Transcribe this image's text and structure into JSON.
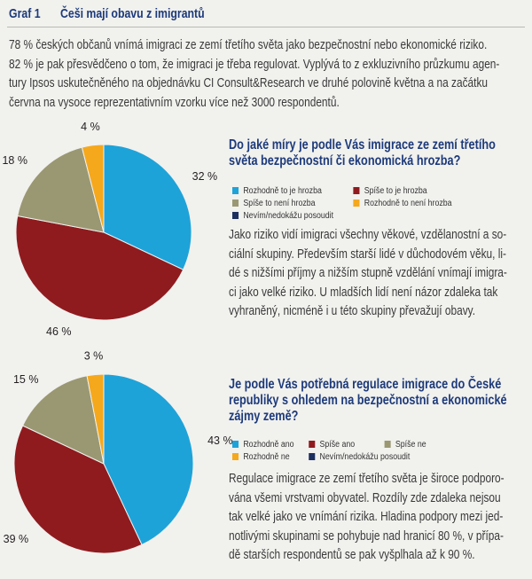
{
  "header": {
    "graf_label": "Graf 1",
    "title": "Češi mají obavu z imigrantů"
  },
  "intro": {
    "lines": [
      "78 % českých občanů vnímá imigraci ze zemí třetího světa jako bezpečnostní nebo ekonomické riziko.",
      "82 % je pak přesvědčeno o tom, že imigraci je třeba regulovat. Vyplývá to z exkluzivního průzkumu agen-",
      "tury Ipsos uskutečněného na objednávku CI Consult&Research ve druhé polovině května a na začátku",
      "června na vysoce reprezentativním vzorku více než 3000 respondentů."
    ]
  },
  "colors": {
    "blue": "#1ea3d9",
    "red": "#8f1b1f",
    "olive": "#9a9873",
    "orange": "#f5a81c",
    "navy": "#1c2f5e",
    "title_blue": "#1d3a7a"
  },
  "chart_data": [
    {
      "type": "pie",
      "title": "Do jaké míry je podle Vás imigrace ze zemí třetího světa bezpečnostní či ekonomická hrozba?",
      "title_lines": [
        "Do jaké míry je podle Vás imigrace ze zemí třetího",
        "světa bezpečnostní či ekonomická hrozba?"
      ],
      "slices": [
        {
          "name": "Rozhodně to je hrozba",
          "value": 32,
          "label": "32 %",
          "color": "#1ea3d9"
        },
        {
          "name": "Spíše to je hrozba",
          "value": 46,
          "label": "46 %",
          "color": "#8f1b1f"
        },
        {
          "name": "Spíše to není hrozba",
          "value": 18,
          "label": "18 %",
          "color": "#9a9873"
        },
        {
          "name": "Rozhodně to není hrozba",
          "value": 4,
          "label": "4 %",
          "color": "#f5a81c"
        },
        {
          "name": "Nevím/nedokážu posoudit",
          "value": 0,
          "label": "",
          "color": "#1c2f5e"
        }
      ],
      "legend": [
        {
          "label": "Rozhodně to je hrozba",
          "color": "#1ea3d9"
        },
        {
          "label": "Spíše to je hrozba",
          "color": "#8f1b1f"
        },
        {
          "label": "Spíše to není hrozba",
          "color": "#9a9873"
        },
        {
          "label": "Rozhodně to není hrozba",
          "color": "#f5a81c"
        },
        {
          "label": "Nevím/nedokážu posoudit",
          "color": "#1c2f5e"
        }
      ],
      "text_lines": [
        "Jako riziko vidí imigraci všechny věkové, vzdělanostní a so-",
        "ciální skupiny. Především starší lidé v důchodovém věku, li-",
        "dé s nižšími příjmy a nižším stupně vzdělání vnímají imigra-",
        "ci jako velké riziko. U mladších lidí není názor zdaleka tak",
        "vyhraněný, nicméně i u této skupiny převažují obavy."
      ]
    },
    {
      "type": "pie",
      "title": "Je podle Vás potřebná regulace imigrace do České republiky s ohledem na bezpečnostní a ekonomické zájmy země?",
      "title_lines": [
        "Je podle Vás potřebná regulace imigrace do České",
        "republiky s ohledem na bezpečnostní a ekonomické",
        "zájmy země?"
      ],
      "slices": [
        {
          "name": "Rozhodně ano",
          "value": 43,
          "label": "43 %",
          "color": "#1ea3d9"
        },
        {
          "name": "Spíše ano",
          "value": 39,
          "label": "39 %",
          "color": "#8f1b1f"
        },
        {
          "name": "Spíše ne",
          "value": 15,
          "label": "15 %",
          "color": "#9a9873"
        },
        {
          "name": "Rozhodně ne",
          "value": 3,
          "label": "3 %",
          "color": "#f5a81c"
        },
        {
          "name": "Nevím/nedokážu posoudit",
          "value": 0,
          "label": "",
          "color": "#1c2f5e"
        }
      ],
      "legend": [
        {
          "label": "Rozhodně ano",
          "color": "#1ea3d9"
        },
        {
          "label": "Spíše ano",
          "color": "#8f1b1f"
        },
        {
          "label": "Spíše ne",
          "color": "#9a9873"
        },
        {
          "label": "Rozhodně ne",
          "color": "#f5a81c"
        },
        {
          "label": "Nevím/nedokážu posoudit",
          "color": "#1c2f5e"
        }
      ],
      "text_lines": [
        "Regulace imigrace ze zemí třetího světa je široce podporo-",
        "vána všemi vrstvami obyvatel. Rozdíly zde zdaleka nejsou",
        "tak velké jako ve vnímání rizika. Hladina podpory mezi jed-",
        "notlivými skupinami se pohybuje nad hranicí 80 %, v přípa-",
        "dě starších respondentů se pak vyšplhala až k 90 %."
      ]
    }
  ]
}
